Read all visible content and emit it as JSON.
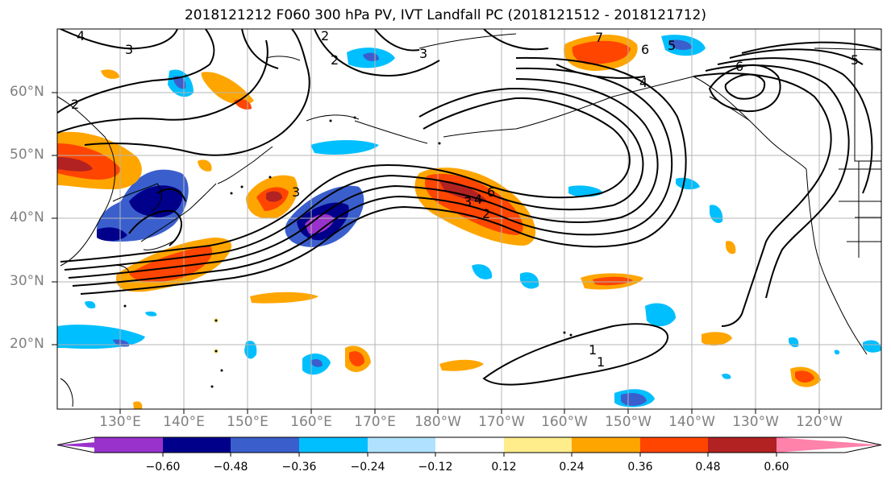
{
  "title": "2018121212 F060 300 hPa PV, IVT Landfall PC (2018121512 - 2018121712)",
  "map": {
    "lat_labels": [
      "60°N",
      "50°N",
      "40°N",
      "30°N",
      "20°N"
    ],
    "lon_labels": [
      "130°E",
      "140°E",
      "150°E",
      "160°E",
      "170°E",
      "180°W",
      "170°W",
      "160°W",
      "150°W",
      "140°W",
      "130°W",
      "120°W"
    ],
    "contour_labels": [
      "4",
      "3",
      "2",
      "2",
      "3",
      "2",
      "5",
      "6",
      "7",
      "5",
      "6",
      "4",
      "3",
      "3",
      "4",
      "6",
      "2",
      "1",
      "1"
    ]
  },
  "colorbar": {
    "ticks": [
      "−0.60",
      "−0.48",
      "−0.36",
      "−0.24",
      "−0.12",
      "0.12",
      "0.24",
      "0.36",
      "0.48",
      "0.60"
    ],
    "colors": [
      "#9932cc",
      "#00008b",
      "#3a5fcd",
      "#00bfff",
      "#b0e2ff",
      "#ffffff",
      "#ffec8b",
      "#ffa500",
      "#ff4500",
      "#b22222",
      "#ff82ab"
    ]
  }
}
